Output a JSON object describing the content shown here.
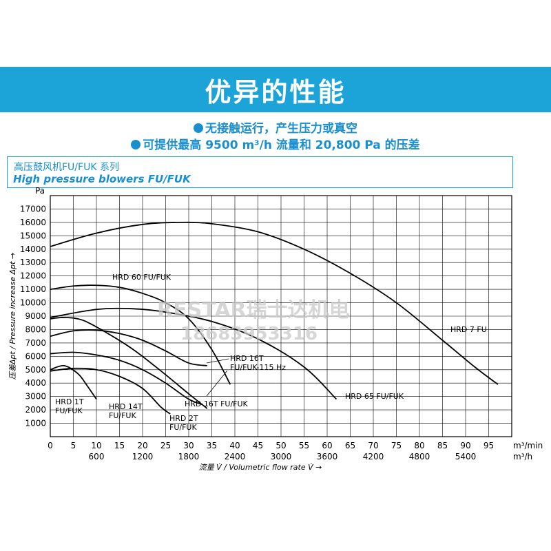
{
  "header": {
    "title": "优异的性能"
  },
  "bullets": [
    "无接触运行，产生压力或真空",
    "可提供最高 9500 m³/h 流量和 20,800 Pa 的压差"
  ],
  "caption": {
    "zh": "高压鼓风机FU/FUK 系列",
    "en": "High pressure blowers FU/FUK"
  },
  "watermark": {
    "line1": "RESTAR瑞士达机电",
    "line2": "18683953316"
  },
  "colors": {
    "banner": "#1ca3d8",
    "accent": "#1a8fd0",
    "curve": "#000000"
  },
  "chart_data": {
    "type": "line",
    "ylabel": "压差Δpt / Pressure increase Δpt →",
    "y_unit": "Pa",
    "xlabel": "流量 V̇ / Volumetric flow rate V̇ →",
    "x_unit_top": "m³/min",
    "x_unit_bottom": "m³/h",
    "xlim": [
      0,
      100
    ],
    "ylim": [
      0,
      18000
    ],
    "x_ticks": [
      0,
      5,
      10,
      15,
      20,
      25,
      30,
      35,
      40,
      45,
      50,
      55,
      60,
      65,
      70,
      75,
      80,
      85,
      90,
      95
    ],
    "x_ticks_bottom": [
      {
        "x": 10,
        "label": "600"
      },
      {
        "x": 20,
        "label": "1200"
      },
      {
        "x": 30,
        "label": "1800"
      },
      {
        "x": 40,
        "label": "2400"
      },
      {
        "x": 50,
        "label": "3000"
      },
      {
        "x": 60,
        "label": "3600"
      },
      {
        "x": 70,
        "label": "4200"
      },
      {
        "x": 80,
        "label": "4800"
      },
      {
        "x": 90,
        "label": "5400"
      }
    ],
    "y_ticks": [
      1000,
      2000,
      3000,
      4000,
      5000,
      6000,
      7000,
      8000,
      9000,
      10000,
      11000,
      12000,
      13000,
      14000,
      15000,
      16000,
      17000
    ],
    "grid": true,
    "series": [
      {
        "name": "HRD 7 FU",
        "points": [
          [
            0,
            14200
          ],
          [
            10,
            15200
          ],
          [
            20,
            15850
          ],
          [
            28,
            16000
          ],
          [
            35,
            15900
          ],
          [
            45,
            15300
          ],
          [
            55,
            14000
          ],
          [
            65,
            12200
          ],
          [
            75,
            10000
          ],
          [
            85,
            7200
          ],
          [
            92,
            5200
          ],
          [
            97,
            3900
          ]
        ]
      },
      {
        "name": "HRD 60 FU/FUK",
        "points": [
          [
            0,
            11000
          ],
          [
            5,
            11250
          ],
          [
            10,
            11300
          ],
          [
            15,
            11150
          ],
          [
            20,
            10700
          ],
          [
            25,
            10000
          ],
          [
            30,
            8800
          ],
          [
            35,
            6500
          ],
          [
            39,
            3900
          ]
        ]
      },
      {
        "name": "HRD 65 FU/FUK",
        "points": [
          [
            0,
            8900
          ],
          [
            10,
            9500
          ],
          [
            18,
            9550
          ],
          [
            25,
            9300
          ],
          [
            35,
            8600
          ],
          [
            45,
            7300
          ],
          [
            55,
            5200
          ],
          [
            62,
            2800
          ]
        ]
      },
      {
        "name": "HRD 16T FU/FUK-115 Hz",
        "points": [
          [
            0,
            8800
          ],
          [
            3,
            8900
          ],
          [
            7,
            8700
          ],
          [
            12,
            7800
          ],
          [
            18,
            6500
          ],
          [
            24,
            4900
          ],
          [
            30,
            3200
          ],
          [
            34,
            2100
          ]
        ]
      },
      {
        "name": "HRD 16T FU/FUK",
        "points": [
          [
            0,
            7500
          ],
          [
            5,
            7900
          ],
          [
            10,
            7950
          ],
          [
            15,
            7700
          ],
          [
            20,
            7200
          ],
          [
            25,
            6400
          ],
          [
            30,
            5500
          ],
          [
            34,
            5300
          ]
        ]
      },
      {
        "name": "HRD 2T FU/FUK",
        "points": [
          [
            0,
            6200
          ],
          [
            5,
            6300
          ],
          [
            10,
            6100
          ],
          [
            15,
            5700
          ],
          [
            20,
            5000
          ],
          [
            25,
            4000
          ],
          [
            30,
            2800
          ],
          [
            33,
            2400
          ]
        ]
      },
      {
        "name": "HRD 14T FU/FUK",
        "points": [
          [
            0,
            4900
          ],
          [
            5,
            5100
          ],
          [
            10,
            5000
          ],
          [
            15,
            4500
          ],
          [
            20,
            3600
          ],
          [
            24,
            2200
          ],
          [
            26,
            1700
          ]
        ]
      },
      {
        "name": "HRD 1T FU/FUK",
        "points": [
          [
            0,
            5000
          ],
          [
            3,
            5300
          ],
          [
            6,
            4700
          ],
          [
            8,
            3800
          ],
          [
            10,
            2800
          ]
        ]
      }
    ]
  }
}
